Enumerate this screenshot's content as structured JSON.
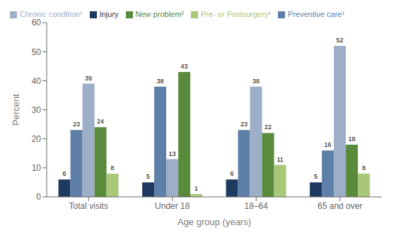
{
  "chart_data": {
    "type": "bar",
    "categories": [
      "Total visits",
      "Under 18",
      "18–64",
      "65 and over"
    ],
    "series": [
      {
        "name": "Injury",
        "values": [
          6,
          5,
          6,
          5
        ],
        "color": "#1e3a5f"
      },
      {
        "name": "Preventive care¹",
        "values": [
          23,
          38,
          23,
          16
        ],
        "color": "#5d7fa8"
      },
      {
        "name": "Chronic condition¹",
        "values": [
          39,
          13,
          38,
          52
        ],
        "color": "#9daec8"
      },
      {
        "name": "New problem²",
        "values": [
          24,
          43,
          22,
          18
        ],
        "color": "#5a8a3c"
      },
      {
        "name": "Pre- or Postsurgery²",
        "values": [
          8,
          1,
          11,
          8
        ],
        "color": "#a8c878"
      }
    ],
    "xlabel": "Age group (years)",
    "ylabel": "Percent",
    "ylim": [
      0,
      60
    ],
    "yticks": [
      0,
      10,
      20,
      30,
      40,
      50,
      60
    ],
    "grid": false,
    "legend": "upper left",
    "data_labels": true
  }
}
